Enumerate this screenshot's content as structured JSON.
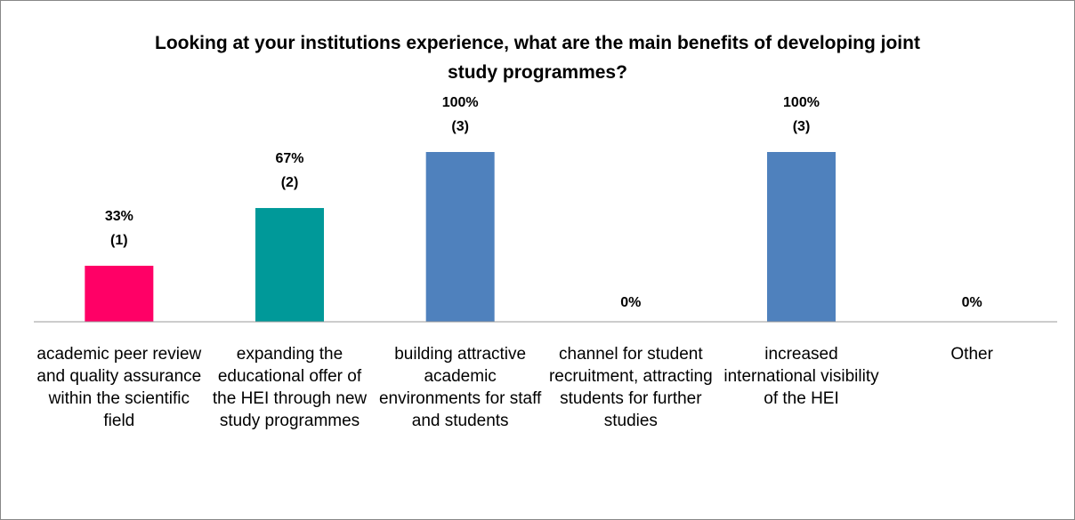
{
  "chart_data": {
    "type": "bar",
    "title": "Looking at your institutions experience, what are the main benefits of developing joint study programmes?",
    "categories": [
      "academic peer review and quality assurance within the scientific field",
      "expanding the educational offer of the HEI through new study programmes",
      "building attractive academic environments for staff and students",
      "channel for student recruitment, attracting students for further studies",
      "increased international visibility of the HEI",
      "Other"
    ],
    "values": [
      33,
      67,
      100,
      0,
      100,
      0
    ],
    "value_labels": [
      "33%",
      "67%",
      "100%",
      "0%",
      "100%",
      "0%"
    ],
    "count_labels": [
      "(1)",
      "(2)",
      "(3)",
      null,
      "(3)",
      null
    ],
    "colors": [
      "#ff0066",
      "#009999",
      "#4f81bd",
      "#4f81bd",
      "#4f81bd",
      "#4f81bd"
    ],
    "ylim": [
      0,
      100
    ]
  }
}
